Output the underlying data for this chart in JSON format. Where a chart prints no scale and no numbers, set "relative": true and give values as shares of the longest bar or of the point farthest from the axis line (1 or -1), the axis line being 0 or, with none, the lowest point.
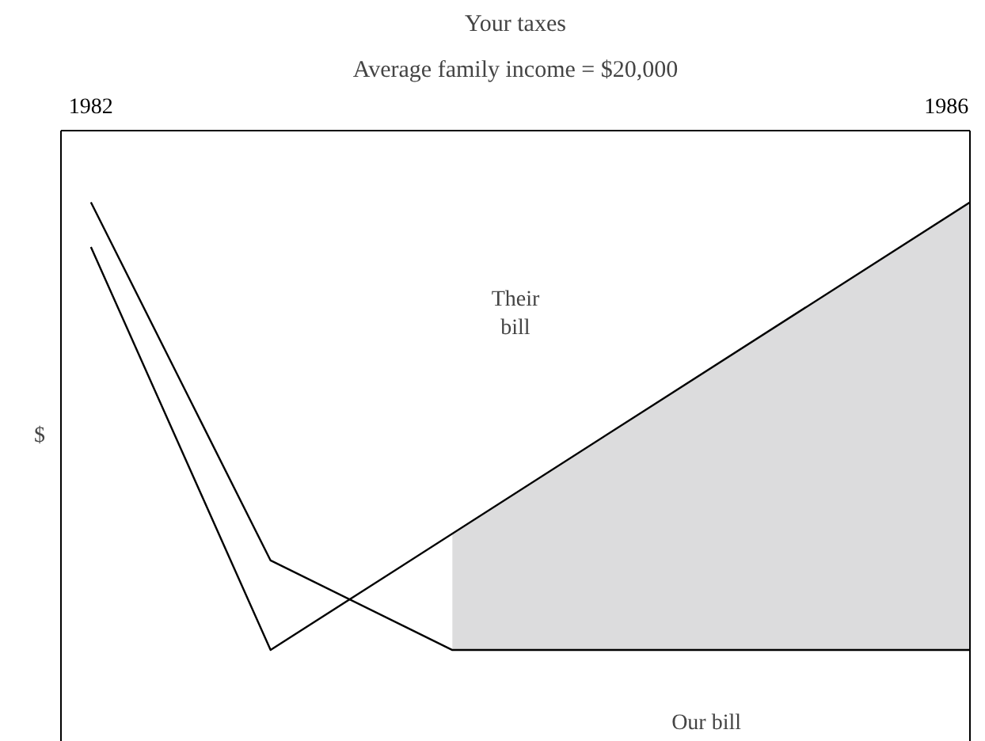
{
  "chart_data": {
    "type": "line",
    "title": "Your taxes",
    "subtitle": "Average family income = $20,000",
    "ylabel": "$",
    "relative": true,
    "xlim": [
      1981.86,
      1986.11
    ],
    "xticks": [
      1982,
      1986
    ],
    "grid": false,
    "tick_labels": "x",
    "line_style": "solid",
    "marker": "none",
    "series": [
      {
        "color": "#000000",
        "x": [
          1982,
          1982.84,
          1986.11
        ],
        "values": [
          0.9,
          0,
          1
        ]
      },
      {
        "color": "#000000",
        "x": [
          1982,
          1982.84,
          1983.69,
          1986.11
        ],
        "values": [
          1,
          0.2,
          0,
          0
        ]
      },
      {
        "type": "area",
        "color": "#dcdcdd",
        "x": [
          1983.69,
          1986.11
        ],
        "values": [
          0.26,
          1
        ]
      }
    ],
    "annotations": [
      "Their\nbill",
      "Our bill"
    ]
  }
}
